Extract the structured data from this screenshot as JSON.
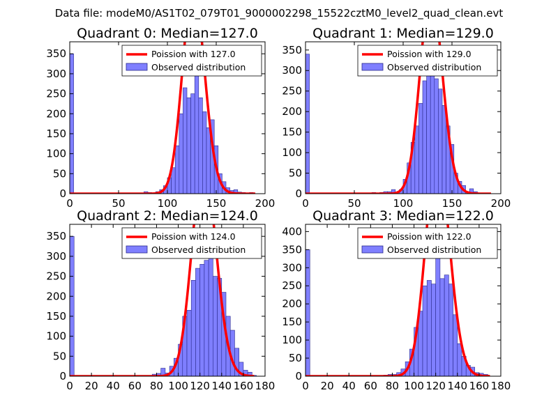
{
  "figure_title": "Data file: modeM0/AS1T02_079T01_9000002298_15522cztM0_level2_quad_clean.evt",
  "chart_data": [
    {
      "type": "bar",
      "title": "Quadrant 0: Median=127.0",
      "xlim": [
        0,
        200
      ],
      "ylim": [
        0,
        380
      ],
      "xticks": [
        0,
        50,
        100,
        150,
        200
      ],
      "yticks": [
        0,
        50,
        100,
        150,
        200,
        250,
        300,
        350
      ],
      "bin_width": 4,
      "hist_color": "#7f7fff",
      "bins": [
        {
          "x": 0,
          "count": 350
        },
        {
          "x": 76,
          "count": 5
        },
        {
          "x": 80,
          "count": 3
        },
        {
          "x": 84,
          "count": 2
        },
        {
          "x": 88,
          "count": 5
        },
        {
          "x": 92,
          "count": 10
        },
        {
          "x": 96,
          "count": 20
        },
        {
          "x": 100,
          "count": 40
        },
        {
          "x": 104,
          "count": 65
        },
        {
          "x": 108,
          "count": 120
        },
        {
          "x": 112,
          "count": 200
        },
        {
          "x": 116,
          "count": 265
        },
        {
          "x": 120,
          "count": 240
        },
        {
          "x": 124,
          "count": 250
        },
        {
          "x": 128,
          "count": 310
        },
        {
          "x": 132,
          "count": 240
        },
        {
          "x": 136,
          "count": 205
        },
        {
          "x": 140,
          "count": 165
        },
        {
          "x": 144,
          "count": 185
        },
        {
          "x": 148,
          "count": 120
        },
        {
          "x": 152,
          "count": 50
        },
        {
          "x": 156,
          "count": 30
        },
        {
          "x": 160,
          "count": 15
        },
        {
          "x": 164,
          "count": 8
        },
        {
          "x": 168,
          "count": 10
        },
        {
          "x": 172,
          "count": 4
        },
        {
          "x": 176,
          "count": 3
        },
        {
          "x": 184,
          "count": 3
        }
      ],
      "curve_label": "Poission with 127.0",
      "curve_color": "#ff0000",
      "poisson_mean": 127,
      "poisson_scale": 14500,
      "legend": [
        "Poission with 127.0",
        "Observed distribution"
      ],
      "legend_position": "upper-right"
    },
    {
      "type": "bar",
      "title": "Quadrant 1: Median=129.0",
      "xlim": [
        0,
        200
      ],
      "ylim": [
        0,
        370
      ],
      "xticks": [
        0,
        50,
        100,
        150,
        200
      ],
      "yticks": [
        0,
        50,
        100,
        150,
        200,
        250,
        300,
        350
      ],
      "bin_width": 4,
      "hist_color": "#7f7fff",
      "bins": [
        {
          "x": 0,
          "count": 340
        },
        {
          "x": 68,
          "count": 3
        },
        {
          "x": 72,
          "count": 2
        },
        {
          "x": 76,
          "count": 3
        },
        {
          "x": 80,
          "count": 5
        },
        {
          "x": 84,
          "count": 5
        },
        {
          "x": 88,
          "count": 10
        },
        {
          "x": 92,
          "count": 3
        },
        {
          "x": 96,
          "count": 10
        },
        {
          "x": 100,
          "count": 35
        },
        {
          "x": 104,
          "count": 75
        },
        {
          "x": 108,
          "count": 125
        },
        {
          "x": 112,
          "count": 165
        },
        {
          "x": 116,
          "count": 220
        },
        {
          "x": 120,
          "count": 275
        },
        {
          "x": 124,
          "count": 330
        },
        {
          "x": 128,
          "count": 360
        },
        {
          "x": 132,
          "count": 280
        },
        {
          "x": 136,
          "count": 255
        },
        {
          "x": 140,
          "count": 215
        },
        {
          "x": 144,
          "count": 165
        },
        {
          "x": 148,
          "count": 120
        },
        {
          "x": 152,
          "count": 50
        },
        {
          "x": 156,
          "count": 30
        },
        {
          "x": 160,
          "count": 20
        },
        {
          "x": 164,
          "count": 5
        },
        {
          "x": 168,
          "count": 12
        },
        {
          "x": 172,
          "count": 5
        }
      ],
      "curve_label": "Poission with 129.0",
      "curve_color": "#ff0000",
      "poisson_mean": 129,
      "poisson_scale": 14000,
      "legend": [
        "Poission with 129.0",
        "Observed distribution"
      ],
      "legend_position": "upper-right"
    },
    {
      "type": "bar",
      "title": "Quadrant 2: Median=124.0",
      "xlim": [
        0,
        180
      ],
      "ylim": [
        0,
        380
      ],
      "xticks": [
        0,
        20,
        40,
        60,
        80,
        100,
        120,
        140,
        160,
        180
      ],
      "yticks": [
        0,
        50,
        100,
        150,
        200,
        250,
        300,
        350
      ],
      "bin_width": 4,
      "hist_color": "#7f7fff",
      "bins": [
        {
          "x": 0,
          "count": 350
        },
        {
          "x": 72,
          "count": 2
        },
        {
          "x": 76,
          "count": 5
        },
        {
          "x": 80,
          "count": 7
        },
        {
          "x": 84,
          "count": 20
        },
        {
          "x": 88,
          "count": 8
        },
        {
          "x": 92,
          "count": 25
        },
        {
          "x": 96,
          "count": 45
        },
        {
          "x": 100,
          "count": 80
        },
        {
          "x": 104,
          "count": 150
        },
        {
          "x": 108,
          "count": 165
        },
        {
          "x": 112,
          "count": 240
        },
        {
          "x": 116,
          "count": 270
        },
        {
          "x": 120,
          "count": 280
        },
        {
          "x": 124,
          "count": 290
        },
        {
          "x": 128,
          "count": 340
        },
        {
          "x": 132,
          "count": 250
        },
        {
          "x": 136,
          "count": 245
        },
        {
          "x": 140,
          "count": 210
        },
        {
          "x": 144,
          "count": 150
        },
        {
          "x": 148,
          "count": 115
        },
        {
          "x": 152,
          "count": 70
        },
        {
          "x": 156,
          "count": 35
        },
        {
          "x": 160,
          "count": 15
        },
        {
          "x": 164,
          "count": 10
        },
        {
          "x": 168,
          "count": 2
        }
      ],
      "curve_label": "Poission with 124.0",
      "curve_color": "#ff0000",
      "poisson_mean": 124,
      "poisson_scale": 14800,
      "legend": [
        "Poission with 124.0",
        "Observed distribution"
      ],
      "legend_position": "upper-right"
    },
    {
      "type": "bar",
      "title": "Quadrant 3: Median=122.0",
      "xlim": [
        0,
        180
      ],
      "ylim": [
        0,
        420
      ],
      "xticks": [
        0,
        20,
        40,
        60,
        80,
        100,
        120,
        140,
        160,
        180
      ],
      "yticks": [
        0,
        50,
        100,
        150,
        200,
        250,
        300,
        350,
        400
      ],
      "bin_width": 4,
      "hist_color": "#7f7fff",
      "bins": [
        {
          "x": 0,
          "count": 350
        },
        {
          "x": 72,
          "count": 3
        },
        {
          "x": 76,
          "count": 5
        },
        {
          "x": 80,
          "count": 5
        },
        {
          "x": 84,
          "count": 10
        },
        {
          "x": 88,
          "count": 20
        },
        {
          "x": 92,
          "count": 40
        },
        {
          "x": 96,
          "count": 75
        },
        {
          "x": 100,
          "count": 135
        },
        {
          "x": 104,
          "count": 180
        },
        {
          "x": 108,
          "count": 250
        },
        {
          "x": 112,
          "count": 265
        },
        {
          "x": 116,
          "count": 255
        },
        {
          "x": 120,
          "count": 395
        },
        {
          "x": 124,
          "count": 270
        },
        {
          "x": 128,
          "count": 280
        },
        {
          "x": 132,
          "count": 255
        },
        {
          "x": 136,
          "count": 170
        },
        {
          "x": 140,
          "count": 90
        },
        {
          "x": 144,
          "count": 55
        },
        {
          "x": 148,
          "count": 30
        },
        {
          "x": 152,
          "count": 25
        },
        {
          "x": 156,
          "count": 10
        },
        {
          "x": 160,
          "count": 8
        },
        {
          "x": 164,
          "count": 5
        }
      ],
      "curve_label": "Poission with 122.0",
      "curve_color": "#ff0000",
      "poisson_mean": 122,
      "poisson_scale": 16800,
      "legend": [
        "Poission with 122.0",
        "Observed distribution"
      ],
      "legend_position": "upper-right"
    }
  ]
}
